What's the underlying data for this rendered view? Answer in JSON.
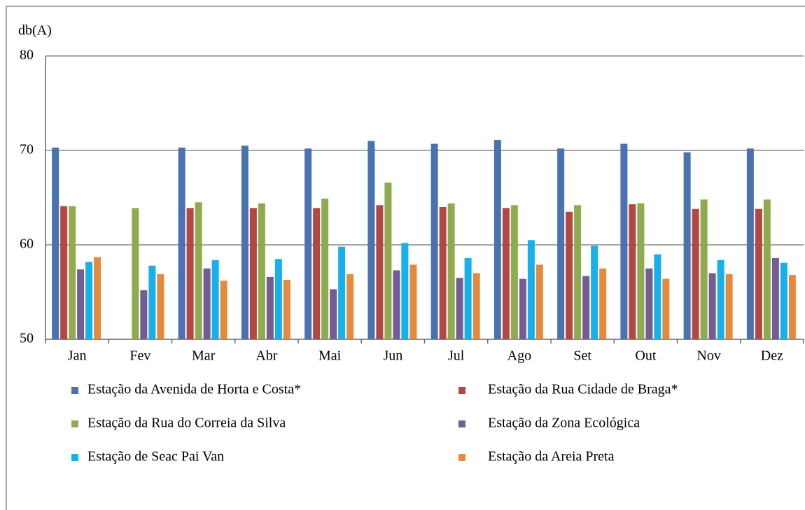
{
  "chart_data": {
    "type": "bar",
    "y_label": "db(A)",
    "categories": [
      "Jan",
      "Fev",
      "Mar",
      "Abr",
      "Mai",
      "Jun",
      "Jul",
      "Ago",
      "Set",
      "Out",
      "Nov",
      "Dez"
    ],
    "series": [
      {
        "name": "Estação da Avenida de Horta e Costa*",
        "color": "#4a72b0",
        "values": [
          70.3,
          null,
          70.3,
          70.5,
          70.2,
          71.0,
          70.7,
          71.1,
          70.2,
          70.7,
          69.8,
          70.2
        ]
      },
      {
        "name": "Estação da Rua Cidade de Braga*",
        "color": "#b24744",
        "values": [
          64.1,
          null,
          63.9,
          63.9,
          63.9,
          64.2,
          64.0,
          63.9,
          63.5,
          64.3,
          63.8,
          63.8
        ]
      },
      {
        "name": "Estação da Rua do Correia da Silva",
        "color": "#8eab50",
        "values": [
          64.1,
          63.9,
          64.5,
          64.4,
          64.9,
          66.6,
          64.4,
          64.2,
          64.2,
          64.4,
          64.8,
          64.8
        ]
      },
      {
        "name": "Estação da Zona Ecológica",
        "color": "#745c96",
        "values": [
          57.4,
          55.2,
          57.5,
          56.6,
          55.3,
          57.3,
          56.5,
          56.4,
          56.7,
          57.5,
          57.0,
          58.6
        ]
      },
      {
        "name": "Estação de Seac Pai Van",
        "color": "#16b1eb",
        "values": [
          58.2,
          57.8,
          58.4,
          58.5,
          59.8,
          60.2,
          58.6,
          60.5,
          59.9,
          59.0,
          58.4,
          58.1
        ]
      },
      {
        "name": "Estação da Areia Preta",
        "color": "#e38a3c",
        "values": [
          58.7,
          56.9,
          56.2,
          56.3,
          56.9,
          57.9,
          57.0,
          57.9,
          57.5,
          56.4,
          56.9,
          56.8
        ]
      }
    ],
    "ylim": [
      50,
      80
    ],
    "yticks": [
      50,
      60,
      70,
      80
    ],
    "grid": true,
    "legend": "bottom"
  }
}
